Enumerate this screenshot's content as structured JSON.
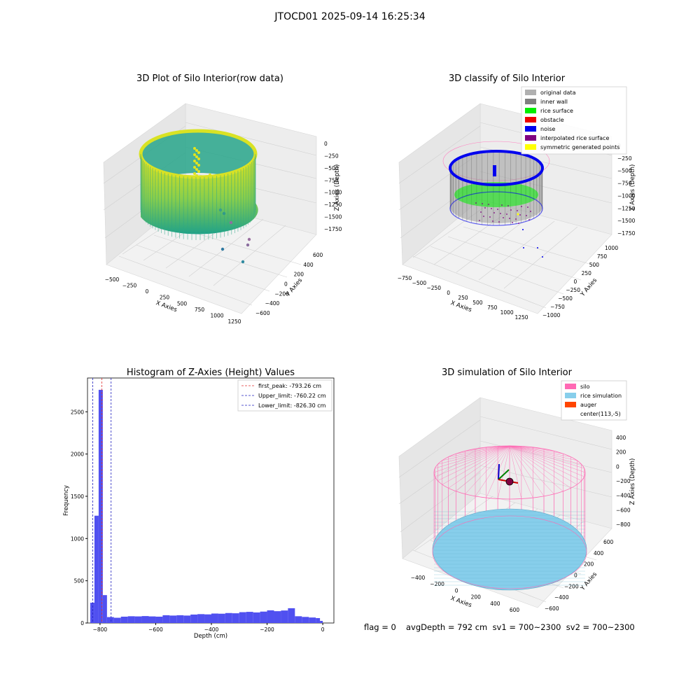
{
  "figure": {
    "suptitle": "JTOCD01 2025-09-14 16:25:34",
    "footer": {
      "flag": "flag = 0",
      "stats": "avgDepth = 792 cm  sv1 = 700~2300  sv2 = 700~2300"
    }
  },
  "chart_data": [
    {
      "type": "scatter",
      "projection": "3d",
      "title": "3D Plot of Silo Interior(row data)",
      "xlabel": "X Axies",
      "ylabel": "Y Axies",
      "zlabel": "Z Axies (Depth)",
      "xticks": [
        "−500",
        "−250",
        "0",
        "250",
        "500",
        "750",
        "1000",
        "1250"
      ],
      "yticks": [
        "−600",
        "−400",
        "−200",
        "0",
        "200",
        "400",
        "600"
      ],
      "zticks": [
        "0",
        "−250",
        "−500",
        "−750",
        "−1000",
        "−1250",
        "−1500",
        "−1750"
      ],
      "xlim": [
        -550,
        1300
      ],
      "ylim": [
        -650,
        650
      ],
      "zlim": [
        -1900,
        100
      ],
      "colormap": "viridis",
      "series": [
        {
          "shape": "ring-wall",
          "cx": 280,
          "cy": 0,
          "r": 580,
          "z_top": 0,
          "z_bottom": -800
        },
        {
          "shape": "interior-column-points",
          "z_range": [
            -100,
            -500
          ]
        },
        {
          "shape": "stray-points",
          "points": [
            [
              500,
              -300,
              -1500
            ],
            [
              700,
              -400,
              -1600
            ],
            [
              800,
              -500,
              -1700
            ],
            [
              900,
              -600,
              -1800
            ],
            [
              950,
              -650,
              -1850
            ]
          ]
        }
      ],
      "grid": true
    },
    {
      "type": "scatter",
      "projection": "3d",
      "title": "3D classify of Silo Interior",
      "xlabel": "X Axies",
      "ylabel": "Y Axies",
      "zlabel": "Z Axies (Depth)",
      "xticks": [
        "−750",
        "−500",
        "−250",
        "0",
        "250",
        "500",
        "750",
        "1000",
        "1250"
      ],
      "yticks": [
        "−1000",
        "−750",
        "−500",
        "−250",
        "0",
        "250",
        "500",
        "750",
        "1000"
      ],
      "zticks": [
        "0",
        "−250",
        "−500",
        "−750",
        "−1000",
        "−1250",
        "−1500",
        "−1750"
      ],
      "xlim": [
        -800,
        1300
      ],
      "ylim": [
        -1050,
        1050
      ],
      "zlim": [
        -1850,
        50
      ],
      "legend_position": "top-right",
      "series": [
        {
          "name": "original data",
          "color": "#b0b0b0"
        },
        {
          "name": "inner wall",
          "color": "#808080"
        },
        {
          "name": "rice surface",
          "color": "#00ee00"
        },
        {
          "name": "obstacle",
          "color": "#ee0000"
        },
        {
          "name": "noise",
          "color": "#0000ee"
        },
        {
          "name": "interpolated rice surface",
          "color": "#800080"
        },
        {
          "name": "symmetric generated points",
          "color": "#ffff00"
        }
      ],
      "grid": true
    },
    {
      "type": "bar",
      "subtype": "histogram",
      "title": "Histogram of Z-Axies (Height) Values",
      "xlabel": "Depth (cm)",
      "ylabel": "Frequency",
      "xlim": [
        -845,
        40
      ],
      "ylim": [
        0,
        2900
      ],
      "xticks": [
        -800,
        -600,
        -400,
        -200,
        0
      ],
      "yticks": [
        0,
        500,
        1000,
        1500,
        2000,
        2500
      ],
      "bar_color": "#5050f0",
      "bins": [
        [
          -835,
          -820,
          240
        ],
        [
          -820,
          -805,
          1270
        ],
        [
          -805,
          -790,
          2760
        ],
        [
          -790,
          -775,
          330
        ],
        [
          -775,
          -750,
          70
        ],
        [
          -750,
          -725,
          62
        ],
        [
          -725,
          -700,
          75
        ],
        [
          -700,
          -675,
          80
        ],
        [
          -675,
          -650,
          78
        ],
        [
          -650,
          -625,
          82
        ],
        [
          -625,
          -600,
          78
        ],
        [
          -600,
          -575,
          75
        ],
        [
          -575,
          -550,
          92
        ],
        [
          -550,
          -525,
          88
        ],
        [
          -525,
          -500,
          92
        ],
        [
          -500,
          -475,
          88
        ],
        [
          -475,
          -450,
          100
        ],
        [
          -450,
          -425,
          105
        ],
        [
          -425,
          -400,
          102
        ],
        [
          -400,
          -375,
          112
        ],
        [
          -375,
          -350,
          110
        ],
        [
          -350,
          -325,
          118
        ],
        [
          -325,
          -300,
          115
        ],
        [
          -300,
          -275,
          128
        ],
        [
          -275,
          -250,
          132
        ],
        [
          -250,
          -225,
          125
        ],
        [
          -225,
          -200,
          135
        ],
        [
          -200,
          -175,
          150
        ],
        [
          -175,
          -150,
          140
        ],
        [
          -150,
          -125,
          148
        ],
        [
          -125,
          -100,
          175
        ],
        [
          -100,
          -75,
          80
        ],
        [
          -75,
          -50,
          72
        ],
        [
          -50,
          -25,
          65
        ],
        [
          -25,
          -10,
          58
        ],
        [
          -10,
          0,
          25
        ]
      ],
      "vlines": [
        {
          "label": "first_peak: -793.26 cm",
          "x": -793.26,
          "color": "#e03030"
        },
        {
          "label": "Upper_limit: -760.22 cm",
          "x": -760.22,
          "color": "#2020c0"
        },
        {
          "label": "Lower_limit: -826.30 cm",
          "x": -826.3,
          "color": "#2020c0"
        }
      ],
      "legend_position": "top-right",
      "grid": false
    },
    {
      "type": "scatter",
      "projection": "3d",
      "title": "3D simulation of Silo Interior",
      "xlabel": "X Axies",
      "ylabel": "Y Axies",
      "zlabel": "Z Axies (Depth)",
      "xticks": [
        "−400",
        "−200",
        "0",
        "200",
        "400",
        "600"
      ],
      "yticks": [
        "−600",
        "−400",
        "−200",
        "0",
        "200",
        "400",
        "600"
      ],
      "zticks": [
        "400",
        "200",
        "0",
        "−200",
        "−400",
        "−600",
        "−800"
      ],
      "xlim": [
        -500,
        700
      ],
      "ylim": [
        -700,
        700
      ],
      "zlim": [
        -900,
        450
      ],
      "legend_position": "top-right",
      "series": [
        {
          "name": "silo",
          "color": "#ff69b4"
        },
        {
          "name": "rice simulation",
          "color": "#87ceeb"
        },
        {
          "name": "auger",
          "color": "#ff4500"
        },
        {
          "name": "center(113,-5)",
          "color": "#ffffff"
        }
      ],
      "grid": true
    }
  ]
}
